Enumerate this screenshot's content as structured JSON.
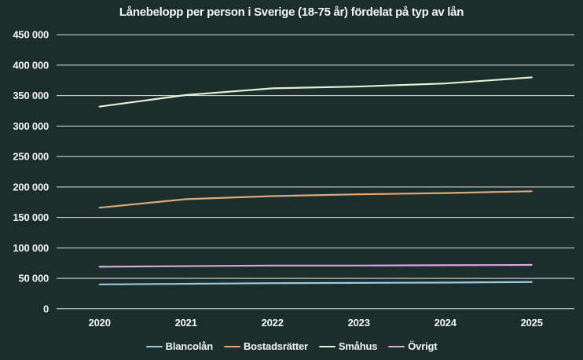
{
  "app": {
    "background_color": "#1b2e2c",
    "text_color": "#f4f6f5",
    "gridline_color": "#dde2e1"
  },
  "chart_data": {
    "type": "line",
    "title": "Lånebelopp per person i Sverige (18-75 år) fördelat på typ av lån",
    "categories": [
      "2020",
      "2021",
      "2022",
      "2023",
      "2024",
      "2025"
    ],
    "series": [
      {
        "name": "Blancolån",
        "color": "#9ac7e3",
        "values": [
          40000,
          41000,
          42000,
          42500,
          43000,
          44000
        ]
      },
      {
        "name": "Bostadsrätter",
        "color": "#dfa87a",
        "values": [
          166000,
          180000,
          185000,
          188000,
          190000,
          193000
        ]
      },
      {
        "name": "Småhus",
        "color": "#e6efd4",
        "values": [
          332000,
          351000,
          362000,
          365000,
          370000,
          380000
        ]
      },
      {
        "name": "Övrigt",
        "color": "#d9a7de",
        "values": [
          69000,
          70000,
          71000,
          71000,
          71500,
          72000
        ]
      }
    ],
    "xlabel": "",
    "ylabel": "",
    "ylim": [
      0,
      450000
    ],
    "ytick_step": 50000,
    "ytick_labels": [
      "0",
      "50 000",
      "100 000",
      "150 000",
      "200 000",
      "250 000",
      "300 000",
      "350 000",
      "400 000",
      "450 000"
    ],
    "grid": "horizontal",
    "legend_position": "bottom"
  }
}
